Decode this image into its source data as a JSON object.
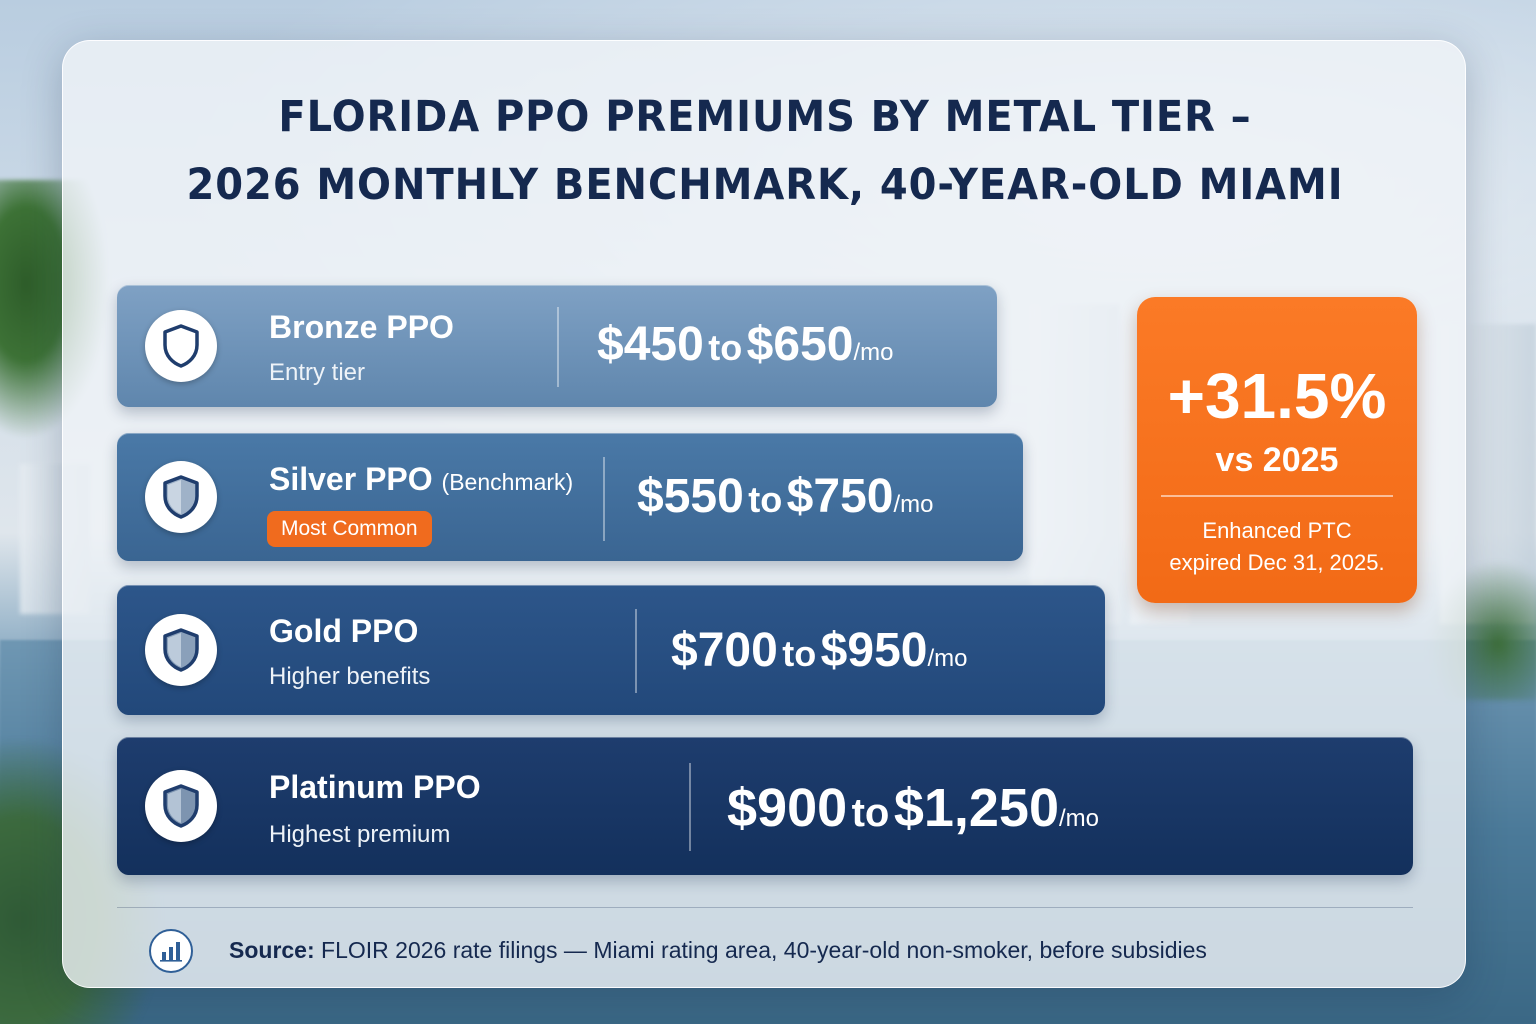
{
  "title": {
    "line1": "FLORIDA PPO PREMIUMS BY METAL TIER –",
    "line2": "2026 MONTHLY BENCHMARK, 40-YEAR-OLD MIAMI"
  },
  "tiers": [
    {
      "name": "Bronze PPO",
      "subtitle": "Entry tier",
      "low": "$450",
      "to": "to",
      "high": "$650",
      "unit": "/mo"
    },
    {
      "name": "Silver PPO",
      "name_paren": "(Benchmark)",
      "badge": "Most Common",
      "low": "$550",
      "to": "to",
      "high": "$750",
      "unit": "/mo"
    },
    {
      "name": "Gold PPO",
      "subtitle": "Higher benefits",
      "low": "$700",
      "to": "to",
      "high": "$950",
      "unit": "/mo"
    },
    {
      "name": "Platinum PPO",
      "subtitle": "Highest premium",
      "low": "$900",
      "to": "to",
      "high": "$1,250",
      "unit": "/mo"
    }
  ],
  "callout": {
    "value": "+31.5%",
    "comparison": "vs 2025",
    "note_line1": "Enhanced PTC",
    "note_line2": "expired Dec 31, 2025."
  },
  "footer": {
    "source_label": "Source:",
    "source_text": "FLOIR 2026 rate filings — Miami rating area, 40-year-old non-smoker, before subsidies"
  },
  "icons": {
    "tier_icon": "shield-icon",
    "footer_icon": "bar-chart-icon"
  },
  "colors": {
    "title": "#15294f",
    "accent_orange": "#f26a16",
    "bronze": "#6f93ba",
    "silver": "#426f9d",
    "gold": "#274f82",
    "platinum": "#173665"
  }
}
